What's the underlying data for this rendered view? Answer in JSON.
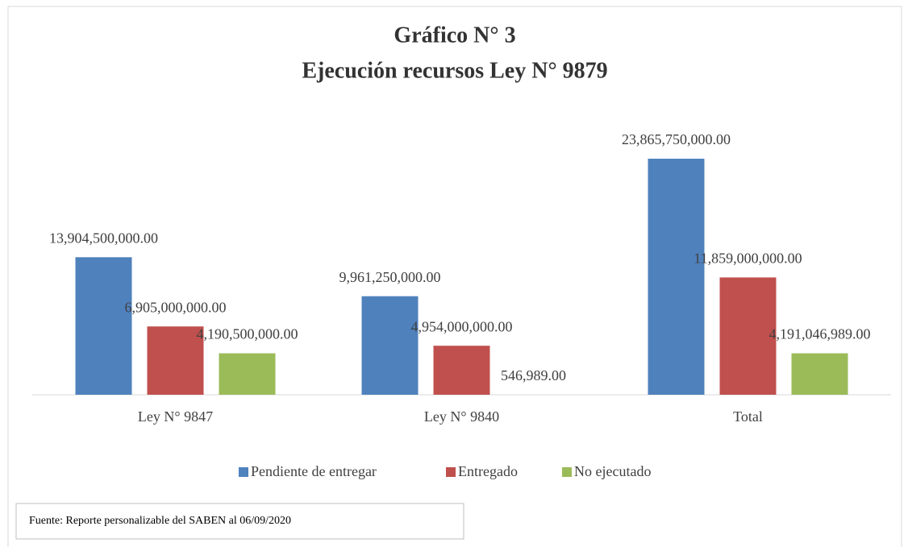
{
  "chart_data": {
    "type": "bar",
    "title": "Gráfico N° 3",
    "subtitle": "Ejecución recursos Ley N° 9879",
    "categories": [
      "Ley N° 9847",
      "Ley N° 9840",
      "Total"
    ],
    "series": [
      {
        "name": "Pendiente de entregar",
        "color": "#4f81bd",
        "values": [
          13904500000,
          9961250000,
          23865750000
        ],
        "value_labels": [
          "13,904,500,000.00",
          "9,961,250,000.00",
          "23,865,750,000.00"
        ]
      },
      {
        "name": "Entregado",
        "color": "#c0504d",
        "values": [
          6905000000,
          4954000000,
          11859000000
        ],
        "value_labels": [
          "6,905,000,000.00",
          "4,954,000,000.00",
          "11,859,000,000.00"
        ]
      },
      {
        "name": "No ejecutado",
        "color": "#9bbb59",
        "values": [
          4190500000,
          546989,
          4191046989
        ],
        "value_labels": [
          "4,190,500,000.00",
          "546,989.00",
          "4,191,046,989.00"
        ]
      }
    ],
    "legend": "bottom",
    "source": "Fuente: Reporte personalizable del SABEN al 06/09/2020"
  }
}
